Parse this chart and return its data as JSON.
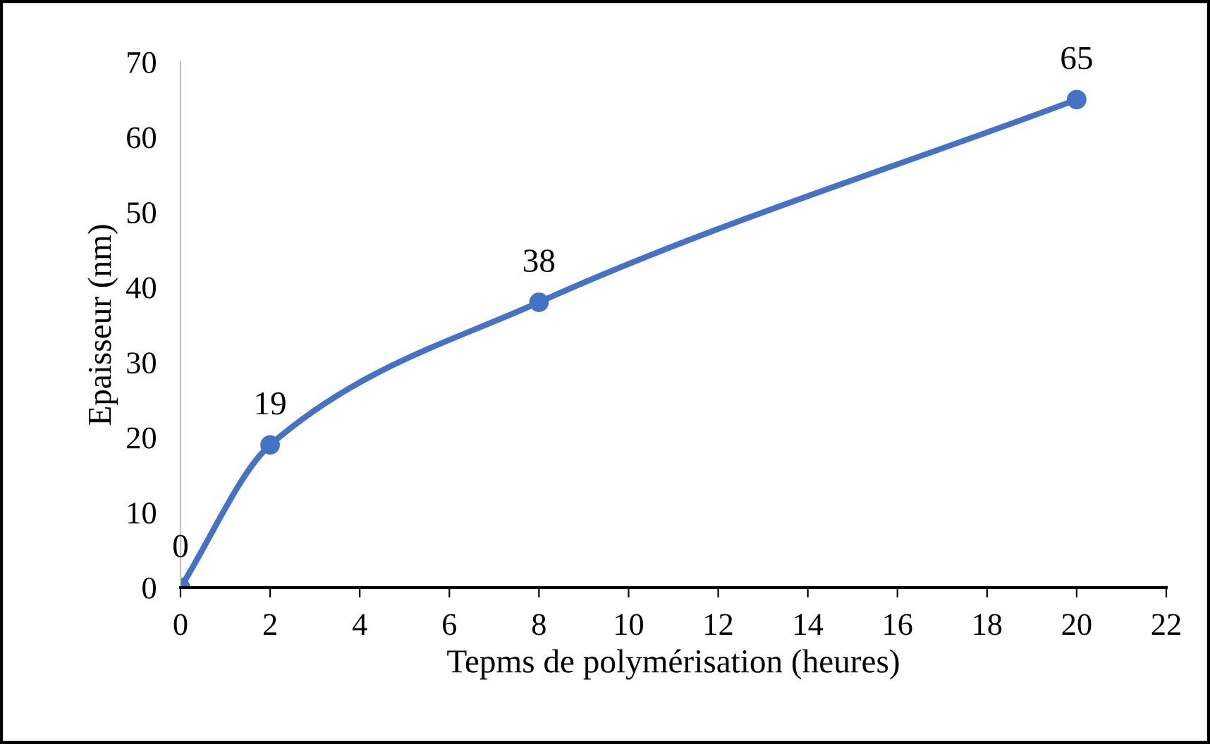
{
  "chart_data": {
    "type": "line",
    "xlabel": "Tepms de polymérisation (heures)",
    "ylabel": "Epaisseur (nm)",
    "x": [
      0,
      2,
      8,
      20
    ],
    "series": [
      {
        "color": "#4472c4",
        "values": [
          0,
          19,
          38,
          65
        ]
      }
    ],
    "xlim": [
      0,
      22
    ],
    "xticks": [
      0,
      2,
      4,
      6,
      8,
      10,
      12,
      14,
      16,
      18,
      20,
      22
    ],
    "ylim": [
      0,
      70
    ],
    "yticks": [
      0,
      10,
      20,
      30,
      40,
      50,
      60,
      70
    ],
    "data_labels": true,
    "marker": "circle",
    "line_style": "solid",
    "grid": false,
    "legend": false
  }
}
